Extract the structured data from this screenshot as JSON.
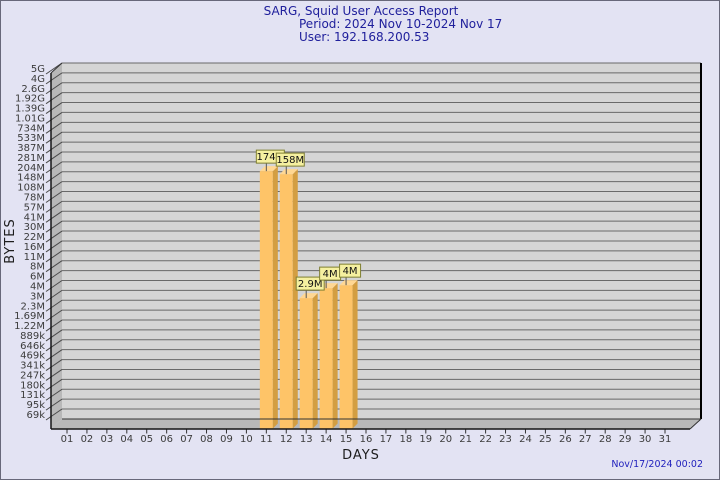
{
  "page": {
    "bg_color": "#e3e3f3",
    "border_color": "#68687a"
  },
  "header": {
    "title": "SARG, Squid User Access Report",
    "period": "Period: 2024 Nov 10-2024 Nov 17",
    "user": "User: 192.168.200.53",
    "text_color": "#20209c"
  },
  "footer": {
    "timestamp": "Nov/17/2024 00:02",
    "text_color": "#2121bd"
  },
  "chart_data": {
    "type": "bar",
    "title": "SARG, Squid User Access Report",
    "subtitle_period": "Period: 2024 Nov 10-2024 Nov 17",
    "subtitle_user": "User: 192.168.200.53",
    "xlabel": "DAYS",
    "ylabel": "BYTES",
    "scale": "log",
    "grid": true,
    "style": "3d-bars",
    "x_categories": [
      "01",
      "02",
      "03",
      "04",
      "05",
      "06",
      "07",
      "08",
      "09",
      "10",
      "11",
      "12",
      "13",
      "14",
      "15",
      "16",
      "17",
      "18",
      "19",
      "20",
      "21",
      "22",
      "23",
      "24",
      "25",
      "26",
      "27",
      "28",
      "29",
      "30",
      "31"
    ],
    "y_tick_labels_top_to_bottom": [
      "5G",
      "4G",
      "2.6G",
      "1.92G",
      "1.39G",
      "1.01G",
      "734M",
      "533M",
      "387M",
      "281M",
      "204M",
      "148M",
      "108M",
      "78M",
      "57M",
      "41M",
      "30M",
      "22M",
      "16M",
      "11M",
      "8M",
      "6M",
      "4M",
      "3M",
      "2.3M",
      "1.69M",
      "1.22M",
      "889k",
      "646k",
      "469k",
      "341k",
      "247k",
      "180k",
      "131k",
      "95k",
      "69k"
    ],
    "y_min_tick_value": 69000,
    "y_max_tick_value": 5000000000,
    "bars": [
      {
        "day": "11",
        "label": "174M",
        "value": 174000000
      },
      {
        "day": "12",
        "label": "158M",
        "value": 158000000
      },
      {
        "day": "13",
        "label": "2.9M",
        "value": 2900000
      },
      {
        "day": "14",
        "label": "4M",
        "value": 4000000
      },
      {
        "day": "15",
        "label": "4M",
        "value": 4400000
      }
    ],
    "colors": {
      "plot_back_wall": "#d5d5d5",
      "plot_side_wall": "#b8b8b8",
      "grid_line": "#696969",
      "axis_line": "#151515",
      "bar_front": "#fec468",
      "bar_side": "#d39e42",
      "bar_top": "#ffd793",
      "value_box_bg": "#f5f0a0",
      "value_box_border": "#7f7f33",
      "tick_text": "#3c3c3c"
    }
  }
}
